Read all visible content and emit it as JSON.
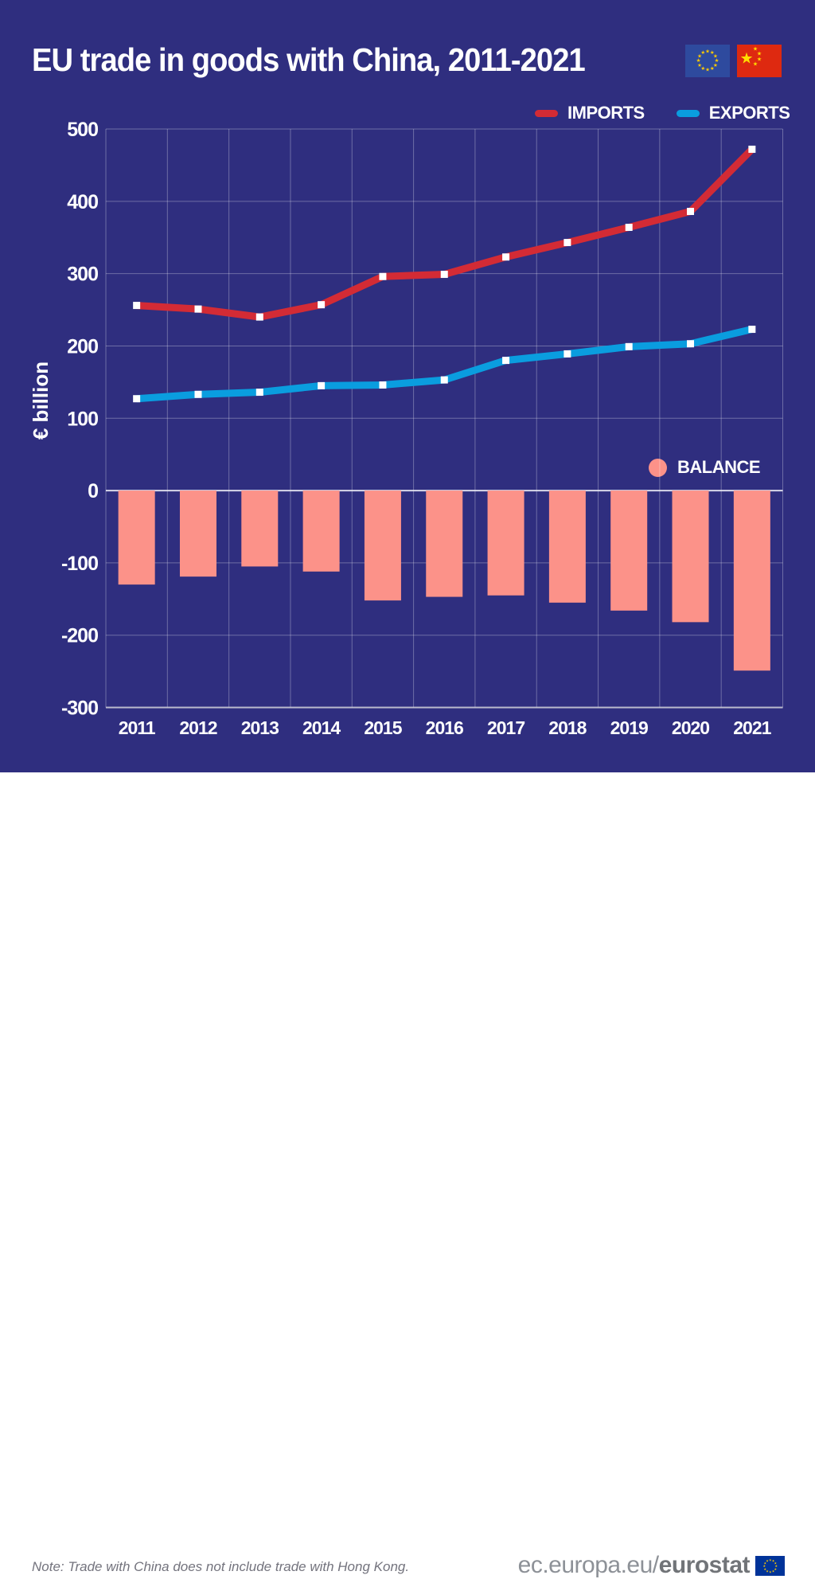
{
  "header": {
    "title": "EU trade in goods with China, 2011-2021"
  },
  "icons": {
    "header_flags": [
      "eu-flag-icon",
      "china-flag-icon"
    ],
    "footer_flag": "eu-flag-icon"
  },
  "colors": {
    "background": "#2F2E7F",
    "imports_red": "#D32B35",
    "exports_blue": "#0A9DDF",
    "balance_salmon": "#FC9289",
    "grid": "rgba(255,255,255,0.30)",
    "zero_line": "rgba(235,235,245,0.9)",
    "axis_line": "rgba(210,210,220,0.85)",
    "text": "#FFFFFF",
    "footer_text": "#73737d",
    "eu_flag_blue": "#2E4A9E",
    "eurostat_flag_blue": "#003399",
    "china_flag_red": "#DE2910",
    "star_yellow": "#FFCC00"
  },
  "footer": {
    "note": "Note: Trade with China does not include trade with Hong Kong.",
    "site_prefix": "ec.europa.eu/",
    "site_bold": "eurostat"
  },
  "chart_data": {
    "type": "line+bar combo",
    "title": "EU trade in goods with China, 2011-2021",
    "ylabel": "€ billion",
    "xlabel": "",
    "ylim": [
      -300,
      500
    ],
    "yticks": [
      500,
      400,
      300,
      200,
      100,
      0,
      -100,
      -200,
      -300
    ],
    "grid": true,
    "legend_position": "lines top-right, balance middle-right",
    "categories": [
      "2011",
      "2012",
      "2013",
      "2014",
      "2015",
      "2016",
      "2017",
      "2018",
      "2019",
      "2020",
      "2021"
    ],
    "series": [
      {
        "name": "IMPORTS",
        "type": "line",
        "color": "#D32B35",
        "values": [
          256,
          251,
          240,
          257,
          296,
          299,
          323,
          343,
          364,
          386,
          472
        ]
      },
      {
        "name": "EXPORTS",
        "type": "line",
        "color": "#0A9DDF",
        "values": [
          127,
          133,
          136,
          145,
          146,
          153,
          180,
          189,
          199,
          203,
          223
        ]
      },
      {
        "name": "BALANCE",
        "type": "bar",
        "color": "#FC9289",
        "values": [
          -130,
          -119,
          -105,
          -112,
          -152,
          -147,
          -145,
          -155,
          -166,
          -182,
          -249
        ]
      }
    ]
  }
}
